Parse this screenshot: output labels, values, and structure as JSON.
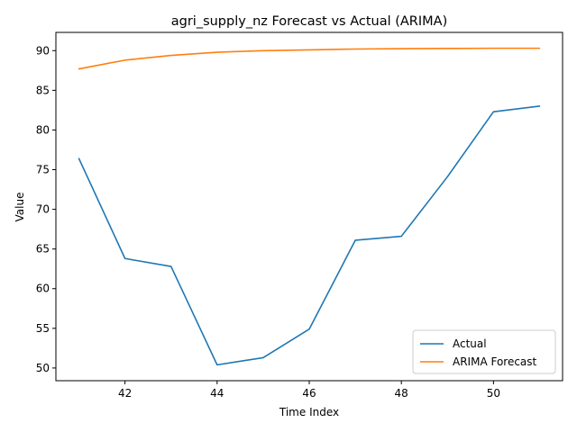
{
  "chart_data": {
    "type": "line",
    "title": "agri_supply_nz Forecast vs Actual (ARIMA)",
    "xlabel": "Time Index",
    "ylabel": "Value",
    "x": [
      41,
      42,
      43,
      44,
      45,
      46,
      47,
      48,
      49,
      50,
      51
    ],
    "xlim": [
      40.5,
      51.5
    ],
    "ylim": [
      48.4,
      92.3
    ],
    "xticks": [
      42,
      44,
      46,
      48,
      50
    ],
    "yticks": [
      50,
      55,
      60,
      65,
      70,
      75,
      80,
      85,
      90
    ],
    "grid": false,
    "legend_position": "lower-right",
    "series": [
      {
        "name": "Actual",
        "color": "#1f77b4",
        "values": [
          76.4,
          63.8,
          62.8,
          50.4,
          51.3,
          54.9,
          66.1,
          66.6,
          74.1,
          82.3,
          83.0
        ]
      },
      {
        "name": "ARIMA Forecast",
        "color": "#ff7f0e",
        "values": [
          87.7,
          88.8,
          89.4,
          89.8,
          90.0,
          90.1,
          90.2,
          90.25,
          90.28,
          90.3,
          90.3
        ]
      }
    ]
  }
}
